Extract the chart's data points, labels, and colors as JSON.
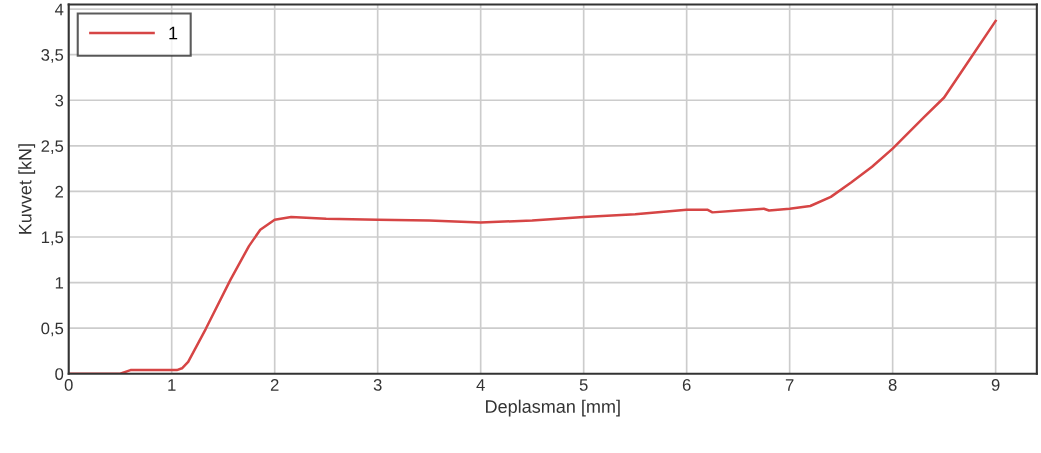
{
  "chart_data": {
    "type": "line",
    "xlabel": "Deplasman [mm]",
    "ylabel": "Kuvvet [kN]",
    "xlim": [
      0,
      9.4
    ],
    "ylim": [
      0,
      4.05
    ],
    "xticks": [
      0,
      1,
      2,
      3,
      4,
      5,
      6,
      7,
      8,
      9
    ],
    "yticks": [
      {
        "value": 0,
        "label": "0"
      },
      {
        "value": 0.5,
        "label": "0,5"
      },
      {
        "value": 1,
        "label": "1"
      },
      {
        "value": 1.5,
        "label": "1,5"
      },
      {
        "value": 2,
        "label": "2"
      },
      {
        "value": 2.5,
        "label": "2,5"
      },
      {
        "value": 3,
        "label": "3"
      },
      {
        "value": 3.5,
        "label": "3,5"
      },
      {
        "value": 4,
        "label": "4"
      }
    ],
    "grid": true,
    "legend": "top left",
    "marker": "none",
    "line_style": "solid",
    "series": [
      {
        "name": "1",
        "color": "#d64545",
        "x": [
          0,
          0.5,
          0.6,
          1.05,
          1.1,
          1.16,
          1.33,
          1.57,
          1.75,
          1.86,
          2.0,
          2.16,
          2.5,
          3.0,
          3.5,
          4.0,
          4.5,
          5.0,
          5.5,
          6.0,
          6.2,
          6.25,
          6.5,
          6.75,
          6.8,
          7.0,
          7.2,
          7.4,
          7.6,
          7.8,
          8.0,
          8.3,
          8.5,
          8.75,
          9.0
        ],
        "values": [
          0,
          0,
          0.04,
          0.04,
          0.06,
          0.13,
          0.49,
          1.03,
          1.4,
          1.58,
          1.69,
          1.72,
          1.7,
          1.69,
          1.68,
          1.66,
          1.68,
          1.72,
          1.75,
          1.8,
          1.8,
          1.77,
          1.79,
          1.81,
          1.79,
          1.81,
          1.84,
          1.94,
          2.1,
          2.27,
          2.47,
          2.81,
          3.03,
          3.45,
          3.87
        ]
      }
    ]
  }
}
